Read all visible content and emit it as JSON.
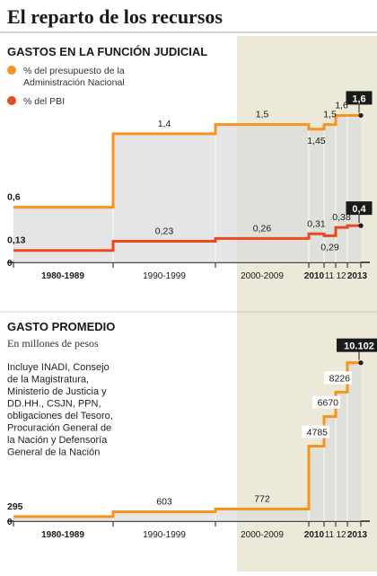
{
  "page_title": "El reparto de los recursos",
  "section1": {
    "title": "GASTOS EN LA FUNCIÓN JUDICIAL",
    "legend": [
      {
        "label_line1": "% del presupuesto de la",
        "label_line2": "Administración Nacional",
        "color": "#f7941d"
      },
      {
        "label_line1": "% del PBI",
        "label_line2": "",
        "color": "#e8491d"
      }
    ],
    "baseline_label": "0"
  },
  "section2": {
    "title": "GASTO PROMEDIO",
    "subtitle": "En millones de pesos",
    "note_lines": [
      "Incluye INADI, Consejo",
      "de la Magistratura,",
      "Ministerio de Justicia y",
      "DD.HH., CSJN, PPN,",
      "obligaciones del Tesoro,",
      "Procuración General de",
      "la Nación y Defensoría",
      "General de la Nación"
    ],
    "baseline_label": "0"
  },
  "colors": {
    "orange": "#f7941d",
    "red": "#e8491d",
    "gray_fill": "#dcdcdc",
    "highlight_band": "#ece9d8",
    "dark": "#1a1a1a"
  },
  "chart_data": [
    {
      "type": "line",
      "title": "GASTOS EN LA FUNCIÓN JUDICIAL",
      "categories": [
        "1980-1989",
        "1990-1999",
        "2000-2009",
        "2010",
        "11",
        "12",
        "2013"
      ],
      "series": [
        {
          "name": "% del presupuesto de la Administración Nacional",
          "values": [
            0.6,
            1.4,
            1.5,
            1.45,
            1.5,
            1.6,
            1.6
          ],
          "labels": [
            "0,6",
            "1,4",
            "1,5",
            "1,45",
            "1,5",
            "1,6",
            "1,6"
          ]
        },
        {
          "name": "% del PBI",
          "values": [
            0.13,
            0.23,
            0.26,
            0.31,
            0.29,
            0.38,
            0.4
          ],
          "labels": [
            "0,13",
            "0,23",
            "0,26",
            "0,31",
            "0,29",
            "0,38",
            "0,4"
          ]
        }
      ],
      "ylim": [
        0,
        1.8
      ],
      "highlighted_period": "2000-2013"
    },
    {
      "type": "line",
      "title": "GASTO PROMEDIO",
      "subtitle": "En millones de pesos",
      "categories": [
        "1980-1989",
        "1990-1999",
        "2000-2009",
        "2010",
        "11",
        "12",
        "2013"
      ],
      "series": [
        {
          "values": [
            295,
            603,
            772,
            4785,
            6670,
            8226,
            10102
          ],
          "labels": [
            "295",
            "603",
            "772",
            "4785",
            "6670",
            "8226",
            "10.102"
          ]
        }
      ],
      "ylim": [
        0,
        11000
      ],
      "highlighted_period": "2000-2013"
    }
  ]
}
